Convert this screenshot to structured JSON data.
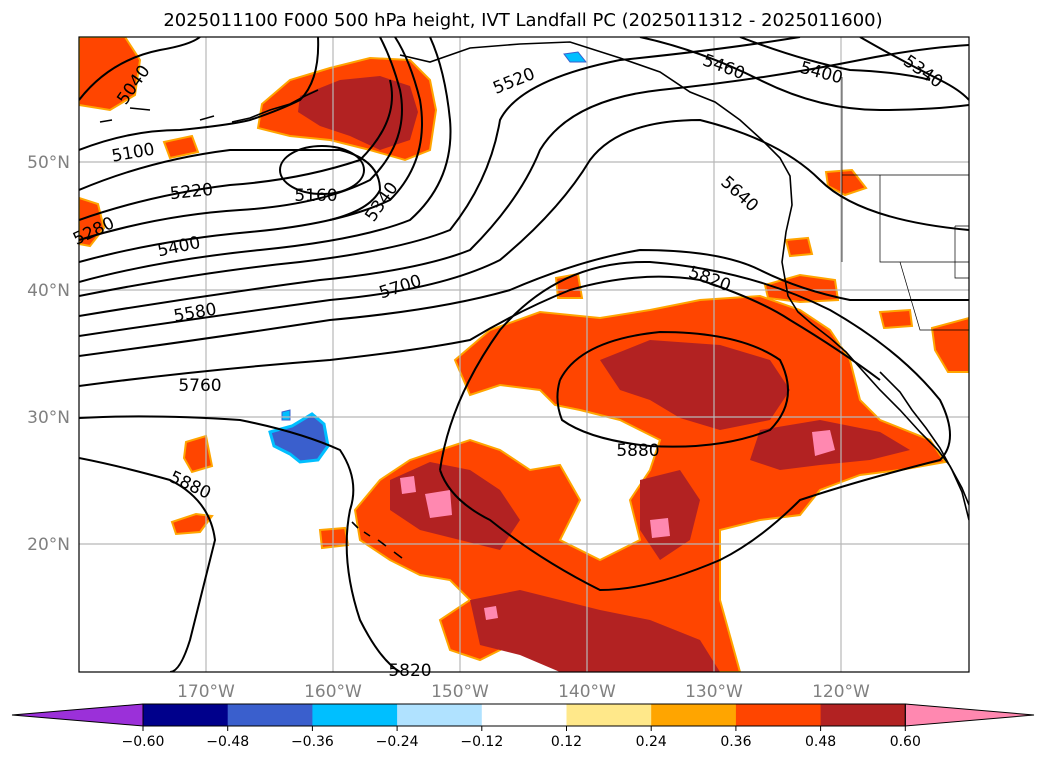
{
  "title": "2025011100 F000 500 hPa height, IVT Landfall PC (2025011312 - 2025011600)",
  "map": {
    "lat_ticks": [
      "50°N",
      "40°N",
      "30°N",
      "20°N"
    ],
    "lon_ticks": [
      "170°W",
      "160°W",
      "150°W",
      "140°W",
      "130°W",
      "120°W"
    ],
    "gridlines": true,
    "contour_labels": [
      "5040",
      "5100",
      "5160",
      "5220",
      "5280",
      "5340",
      "5400",
      "5460",
      "5520",
      "5580",
      "5640",
      "5700",
      "5760",
      "5820",
      "5880"
    ],
    "contour_label_placements": [
      {
        "text": "5040"
      },
      {
        "text": "5100"
      },
      {
        "text": "5160"
      },
      {
        "text": "5220"
      },
      {
        "text": "5280"
      },
      {
        "text": "5400"
      },
      {
        "text": "5580"
      },
      {
        "text": "5760"
      },
      {
        "text": "5880"
      },
      {
        "text": "5340"
      },
      {
        "text": "5700"
      },
      {
        "text": "5520"
      },
      {
        "text": "5460"
      },
      {
        "text": "5400"
      },
      {
        "text": "5340"
      },
      {
        "text": "5640"
      },
      {
        "text": "5820"
      },
      {
        "text": "5880"
      },
      {
        "text": "5820"
      }
    ]
  },
  "colorbar": {
    "ticks": [
      "−0.60",
      "−0.48",
      "−0.36",
      "−0.24",
      "−0.12",
      "0.12",
      "0.24",
      "0.36",
      "0.48",
      "0.60"
    ],
    "colors": [
      "#9b30d9",
      "#00008b",
      "#3a5fcd",
      "#00bfff",
      "#b0e2ff",
      "#ffffff",
      "#ffe88a",
      "#ffa500",
      "#ff4500",
      "#b22222",
      "#ff88b0"
    ]
  }
}
